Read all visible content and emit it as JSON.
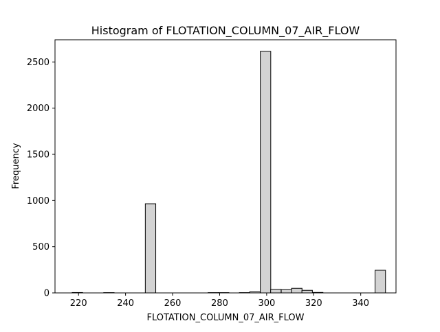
{
  "chart_data": {
    "type": "bar",
    "title": "Histogram of FLOTATION_COLUMN_07_AIR_FLOW",
    "xlabel": "FLOTATION_COLUMN_07_AIR_FLOW",
    "ylabel": "Frequency",
    "xlim": [
      210,
      355
    ],
    "ylim": [
      0,
      2740
    ],
    "xticks": [
      220,
      240,
      260,
      280,
      300,
      320,
      340
    ],
    "yticks": [
      0,
      500,
      1000,
      1500,
      2000,
      2500
    ],
    "bin_width": 4.44,
    "bins": [
      {
        "x0": 217.3,
        "count": 4
      },
      {
        "x0": 230.7,
        "count": 3
      },
      {
        "x0": 248.4,
        "count": 965
      },
      {
        "x0": 275.1,
        "count": 3
      },
      {
        "x0": 279.5,
        "count": 3
      },
      {
        "x0": 288.4,
        "count": 3
      },
      {
        "x0": 292.8,
        "count": 12
      },
      {
        "x0": 297.3,
        "count": 2615
      },
      {
        "x0": 301.7,
        "count": 38
      },
      {
        "x0": 306.2,
        "count": 35
      },
      {
        "x0": 310.6,
        "count": 50
      },
      {
        "x0": 315.0,
        "count": 28
      },
      {
        "x0": 319.5,
        "count": 5
      },
      {
        "x0": 346.1,
        "count": 245
      }
    ],
    "bar_color": "#d3d3d3",
    "edge_color": "#000000",
    "grid": false,
    "legend": "none"
  }
}
